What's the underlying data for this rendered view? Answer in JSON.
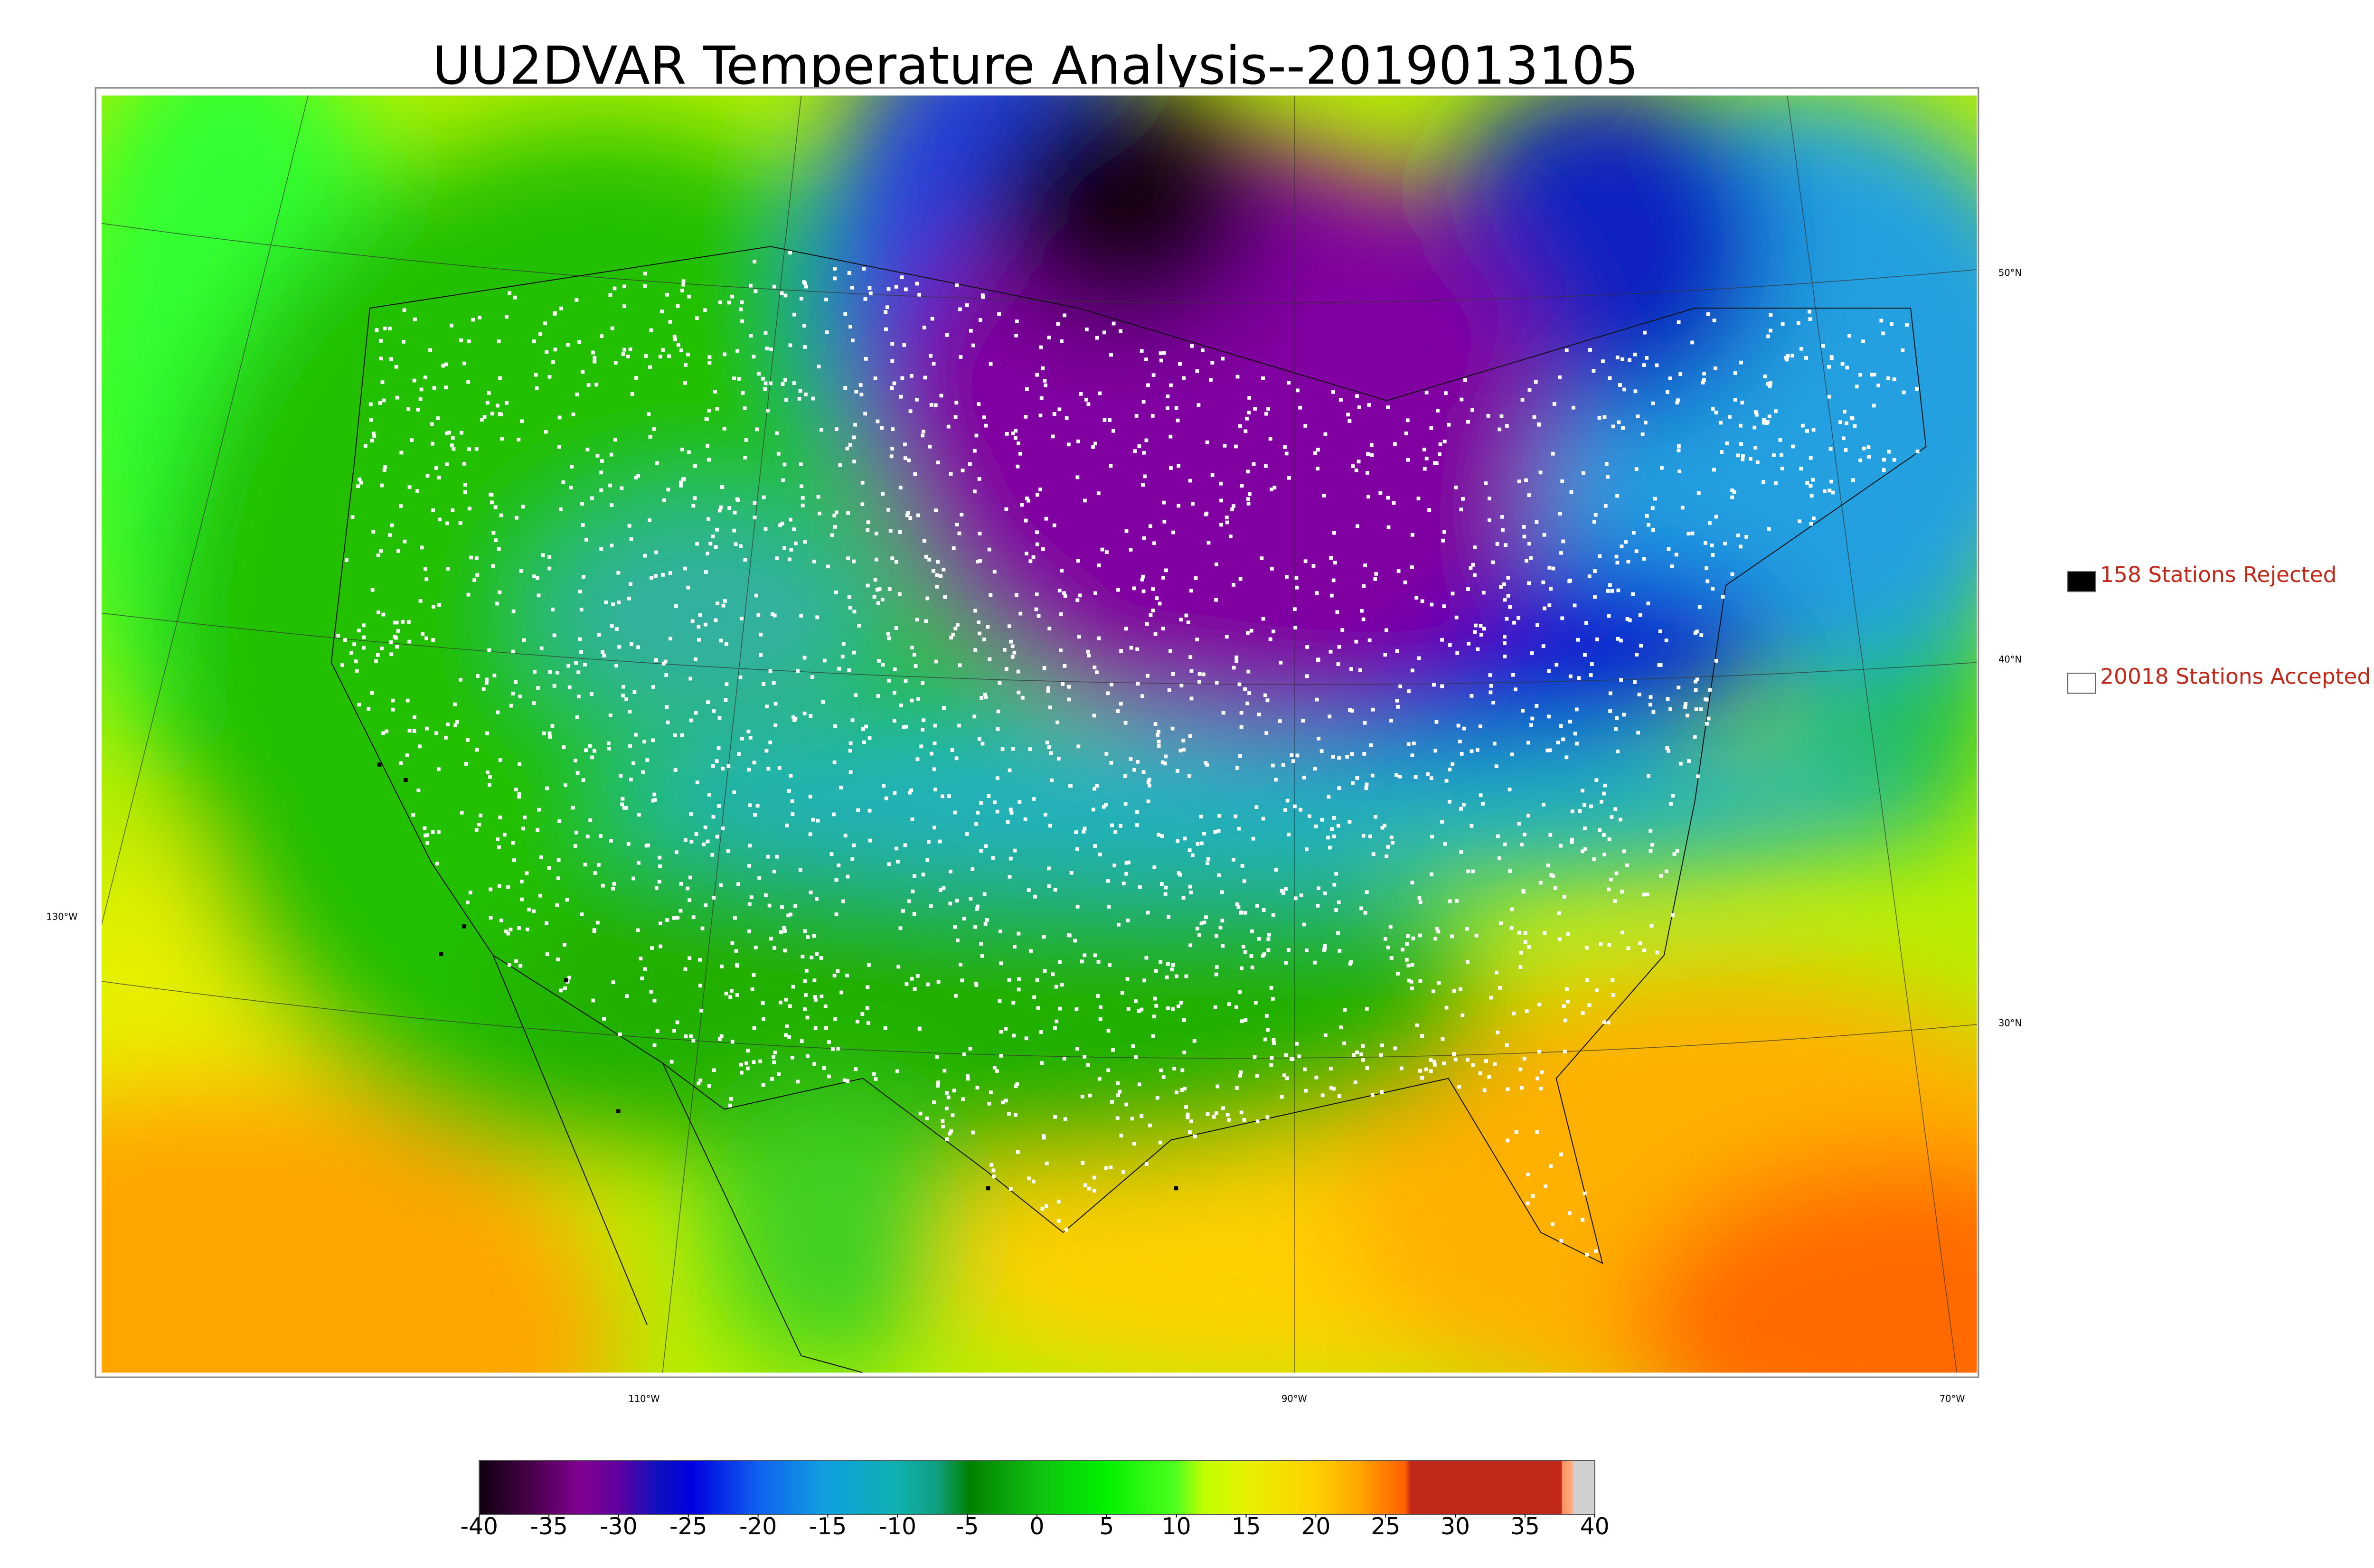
{
  "title": "UU2DVAR Temperature Analysis--2019013105",
  "legend": [
    {
      "label": "158 Stations Rejected",
      "color": "#000000"
    },
    {
      "label": "20018 Stations Accepted",
      "color": "#ffffff"
    }
  ],
  "latitude_labels": [
    "50°N",
    "40°N",
    "30°N"
  ],
  "longitude_labels": [
    "130°W",
    "110°W",
    "90°W",
    "70°W"
  ],
  "colorbar": {
    "lim": [
      -40,
      40
    ],
    "ticks": [
      -40,
      -35,
      -30,
      -25,
      -20,
      -15,
      -10,
      -5,
      0,
      5,
      10,
      15,
      20,
      25,
      30,
      35,
      40
    ]
  }
}
